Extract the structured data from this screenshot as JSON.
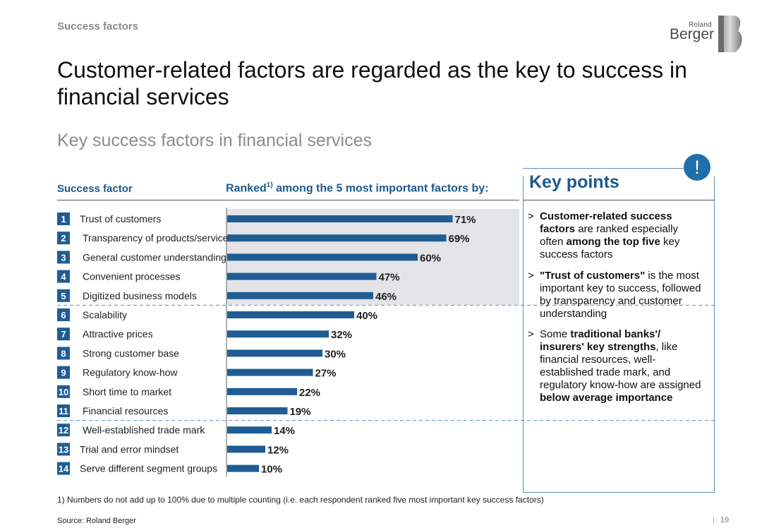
{
  "header": {
    "section_label": "Success factors",
    "logo_top": "Roland",
    "logo_bottom": "Berger",
    "logo_mark": "B"
  },
  "title": "Customer-related factors are regarded as the key to success in financial services",
  "colors": {
    "bar": "#1f5d94",
    "badge": "#1f6fa8",
    "heading_blue": "#1c5a8c",
    "top5_bg": "#e3e3e8",
    "dash": "#5b8fbf"
  },
  "chart_data": {
    "type": "bar",
    "orientation": "horizontal",
    "title": "Key success factors in financial services",
    "category_header": "Success factor",
    "value_header": "Ranked",
    "value_header_sup": "1)",
    "value_header_rest": " among the 5 most important factors by:",
    "ranks": [
      "1",
      "2",
      "3",
      "4",
      "5",
      "6",
      "7",
      "8",
      "9",
      "10",
      "11",
      "12",
      "13",
      "14"
    ],
    "categories": [
      "Trust of customers",
      "Transparency of products/services",
      "General customer understanding",
      "Convenient processes",
      "Digitized business models",
      "Scalability",
      "Attractive prices",
      "Strong customer base",
      "Regulatory know-how",
      "Short time to market",
      "Financial resources",
      "Well-established trade mark",
      "Trial and error mindset",
      "Serve different segment groups"
    ],
    "values": [
      71,
      69,
      60,
      47,
      46,
      40,
      32,
      30,
      27,
      22,
      19,
      14,
      12,
      10
    ],
    "value_labels": [
      "71%",
      "69%",
      "60%",
      "47%",
      "46%",
      "40%",
      "32%",
      "30%",
      "27%",
      "22%",
      "19%",
      "14%",
      "12%",
      "10%"
    ],
    "unit": "%",
    "highlight_top": 5,
    "group_breaks_after_rank": [
      5,
      11
    ]
  },
  "key_points": {
    "title": "Key points",
    "badge": "!",
    "marker": ">",
    "items": [
      {
        "parts": [
          {
            "t": "Customer-related success factors",
            "b": true
          },
          {
            "t": " are ranked especially often ",
            "b": false
          },
          {
            "t": "among the top five",
            "b": true
          },
          {
            "t": " key success factors",
            "b": false
          }
        ]
      },
      {
        "parts": [
          {
            "t": "\"Trust of customers\"",
            "b": true
          },
          {
            "t": " is the most important key to success, followed by transparency and customer understanding",
            "b": false
          }
        ]
      },
      {
        "parts": [
          {
            "t": "Some ",
            "b": false
          },
          {
            "t": "traditional banks'/ insurers' key strengths",
            "b": true
          },
          {
            "t": ", like financial resources, well-established trade mark, and regulatory know-how are assigned ",
            "b": false
          },
          {
            "t": "below average importance",
            "b": true
          }
        ]
      }
    ]
  },
  "footnote": "1) Numbers do not add up to 100% due to multiple counting (i.e. each respondent ranked five most important key success factors)",
  "source": "Source: Roland Berger",
  "page_number": "19",
  "page_sep": "|"
}
